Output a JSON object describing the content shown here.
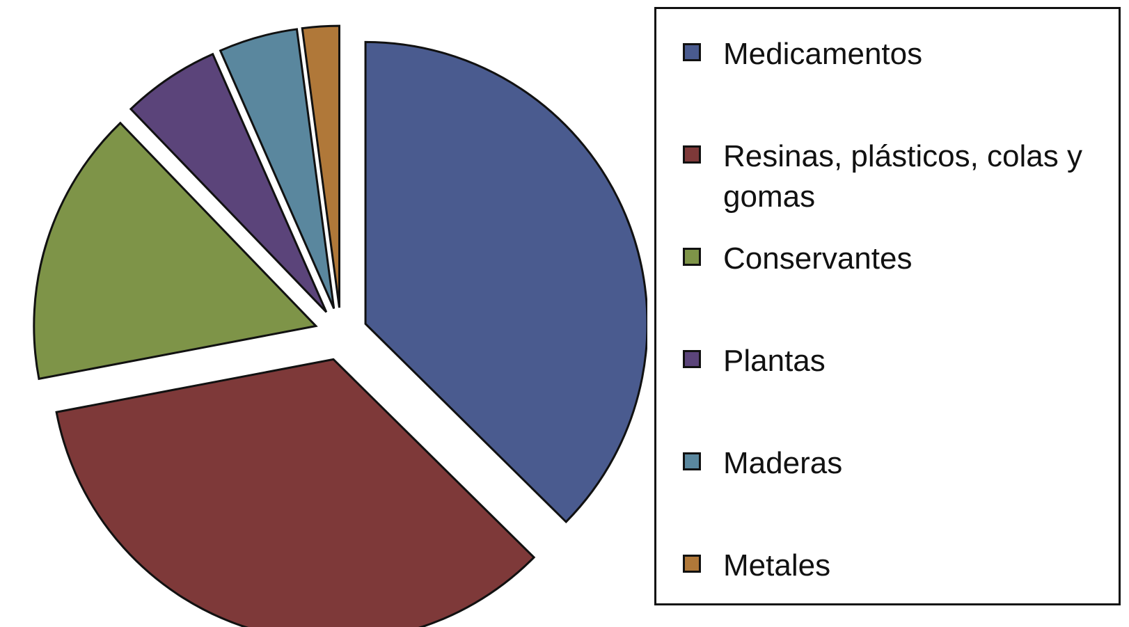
{
  "chart_data": {
    "type": "pie",
    "title": "",
    "exploded": true,
    "start_angle_deg": 0,
    "direction": "clockwise",
    "legend_position": "right",
    "slices": [
      {
        "label": "Medicamentos",
        "value": 37.4,
        "color": "#4a5b8f"
      },
      {
        "label": "Resinas, plásticos, colas y gomas",
        "value": 34.6,
        "color": "#7e3939"
      },
      {
        "label": "Conservantes",
        "value": 15.8,
        "color": "#7e9448"
      },
      {
        "label": "Plantas",
        "value": 5.6,
        "color": "#5b447a"
      },
      {
        "label": "Maderas",
        "value": 4.5,
        "color": "#5a879e"
      },
      {
        "label": "Metales",
        "value": 2.1,
        "color": "#b07839"
      }
    ]
  }
}
